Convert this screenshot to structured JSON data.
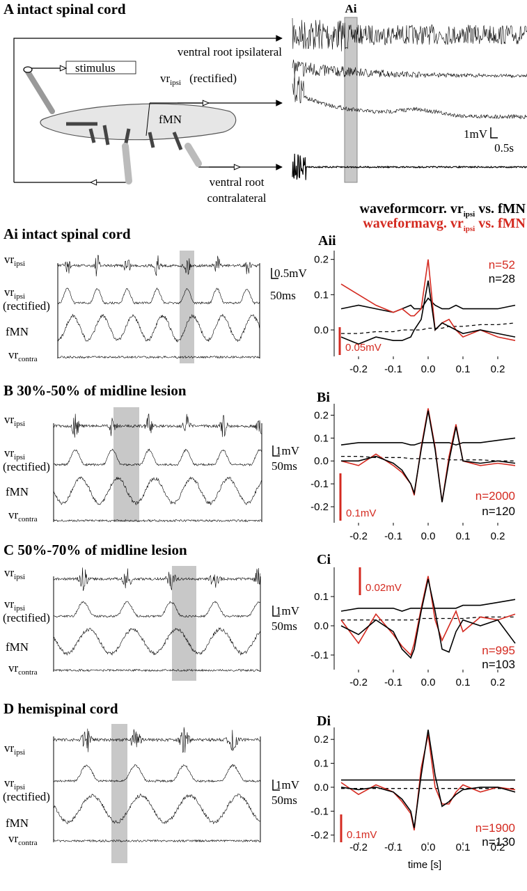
{
  "panel_a": {
    "title": "A intact spinal cord",
    "inset_label": "Ai",
    "stimulus": "stimulus",
    "vr_ipsilateral": "ventral root ipsilateral",
    "fmn": "fMN",
    "scale_v": "1mV",
    "scale_t": "0.5s",
    "vr_contralateral_1": "ventral root",
    "vr_contralateral_2": "contralateral"
  },
  "trace_labels": {
    "vr": "vr",
    "ipsi": "ipsi",
    "rectified": "(rectified)",
    "fmn": "fMN",
    "contra": "contra"
  },
  "legend": [
    {
      "text": "waveformcorr. vr",
      "sub": "ipsi",
      "suffix": " vs. fMN",
      "color": "#000000"
    },
    {
      "text": "waveformavg. vr",
      "sub": "ipsi",
      "suffix": " vs. fMN",
      "color": "#d42a20"
    }
  ],
  "trace_panels": [
    {
      "title": "Ai intact spinal cord",
      "scale_v": "0.5mV",
      "scale_t": "50ms"
    },
    {
      "title": "B   30%-50% of midline lesion",
      "scale_v": "1mV",
      "scale_t": "50ms"
    },
    {
      "title": "C   50%-70% of midline lesion",
      "scale_v": "1mV",
      "scale_t": "50ms"
    },
    {
      "title": "D   hemispinal cord",
      "scale_v": "1mV",
      "scale_t": "50ms"
    }
  ],
  "chart_data": [
    {
      "type": "line",
      "label": "Aii",
      "xlim": [
        -0.27,
        0.25
      ],
      "ylim": [
        -0.075,
        0.225
      ],
      "xticks": [
        -0.2,
        -0.1,
        {
          "value": 0,
          "label": "0.0"
        },
        0.1,
        0.2
      ],
      "yticks": [
        {
          "value": 0,
          "label": "0.0"
        },
        0.1,
        0.2
      ],
      "x": [
        -0.25,
        -0.2,
        -0.15,
        -0.1,
        -0.075,
        -0.05,
        -0.04,
        -0.02,
        0.0,
        0.02,
        0.04,
        0.06,
        0.08,
        0.1,
        0.15,
        0.2,
        0.25
      ],
      "series": [
        {
          "color": "#000000",
          "values": [
            0.06,
            0.07,
            0.06,
            0.05,
            0.06,
            0.07,
            0.06,
            0.06,
            0.09,
            0.07,
            0.06,
            0.06,
            0.07,
            0.06,
            0.06,
            0.06,
            0.07
          ]
        },
        {
          "color": "#000000",
          "dashed": true,
          "values": [
            -0.01,
            -0.01,
            -0.005,
            -0.005,
            0.0,
            0.0,
            0.0,
            0.0,
            0.005,
            0.005,
            0.005,
            0.01,
            0.01,
            0.01,
            0.015,
            0.015,
            0.02
          ]
        },
        {
          "color": "#d42a20",
          "values": [
            0.13,
            0.1,
            0.07,
            0.05,
            0.06,
            0.04,
            0.04,
            0.06,
            0.2,
            0.0,
            0.02,
            0.03,
            0.0,
            -0.02,
            0.0,
            -0.02,
            -0.03
          ]
        },
        {
          "color": "#000000",
          "values": [
            -0.02,
            -0.04,
            -0.02,
            -0.03,
            -0.03,
            -0.02,
            0.0,
            0.03,
            0.14,
            0.0,
            0.02,
            0.01,
            0.0,
            -0.01,
            0.0,
            -0.01,
            -0.02
          ]
        }
      ],
      "scale_label": "0.05mV",
      "n_labels": [
        {
          "text": "n=52",
          "color": "#d42a20"
        },
        {
          "text": "n=28",
          "color": "#000000"
        }
      ]
    },
    {
      "type": "line",
      "label": "Bi",
      "xlim": [
        -0.27,
        0.25
      ],
      "ylim": [
        -0.27,
        0.25
      ],
      "xticks": [
        -0.2,
        -0.1,
        {
          "value": 0,
          "label": "0.0"
        },
        0.1,
        0.2
      ],
      "yticks": [
        -0.2,
        -0.1,
        {
          "value": 0,
          "label": "0.0"
        },
        0.1,
        0.2
      ],
      "x": [
        -0.25,
        -0.2,
        -0.15,
        -0.1,
        -0.075,
        -0.05,
        -0.04,
        -0.02,
        0.0,
        0.02,
        0.04,
        0.06,
        0.08,
        0.1,
        0.15,
        0.2,
        0.25
      ],
      "series": [
        {
          "color": "#000000",
          "values": [
            0.07,
            0.08,
            0.08,
            0.08,
            0.08,
            0.07,
            0.07,
            0.08,
            0.08,
            0.08,
            0.08,
            0.08,
            0.07,
            0.08,
            0.08,
            0.09,
            0.1
          ]
        },
        {
          "color": "#000000",
          "dashed": true,
          "values": [
            0.02,
            0.02,
            0.015,
            0.015,
            0.015,
            0.01,
            0.01,
            0.01,
            0.01,
            0.01,
            0.01,
            0.005,
            0.005,
            0.005,
            0.005,
            0.0,
            0.0
          ]
        },
        {
          "color": "#d42a20",
          "values": [
            0.0,
            -0.02,
            0.03,
            -0.02,
            -0.05,
            -0.1,
            -0.15,
            0.06,
            0.23,
            0.06,
            -0.18,
            0.02,
            0.16,
            0.0,
            -0.02,
            -0.01,
            -0.02
          ]
        },
        {
          "color": "#000000",
          "values": [
            0.0,
            0.0,
            0.02,
            -0.01,
            -0.04,
            -0.1,
            -0.14,
            0.05,
            0.22,
            0.05,
            -0.18,
            0.0,
            0.15,
            0.0,
            -0.01,
            0.0,
            -0.01
          ]
        }
      ],
      "scale_label": "0.1mV",
      "n_labels": [
        {
          "text": "n=2000",
          "color": "#d42a20"
        },
        {
          "text": "n=120",
          "color": "#000000"
        }
      ]
    },
    {
      "type": "line",
      "label": "Ci",
      "xlim": [
        -0.27,
        0.25
      ],
      "ylim": [
        -0.15,
        0.2
      ],
      "xticks": [
        -0.2,
        -0.1,
        {
          "value": 0,
          "label": "0.0"
        },
        0.1,
        0.2
      ],
      "yticks": [
        -0.1,
        {
          "value": 0,
          "label": "0.0"
        },
        0.1
      ],
      "x": [
        -0.25,
        -0.2,
        -0.15,
        -0.1,
        -0.075,
        -0.05,
        -0.04,
        -0.02,
        0.0,
        0.02,
        0.04,
        0.06,
        0.08,
        0.1,
        0.15,
        0.2,
        0.25
      ],
      "series": [
        {
          "color": "#000000",
          "values": [
            0.05,
            0.06,
            0.06,
            0.06,
            0.05,
            0.06,
            0.06,
            0.06,
            0.06,
            0.06,
            0.06,
            0.06,
            0.06,
            0.07,
            0.07,
            0.08,
            0.09
          ]
        },
        {
          "color": "#000000",
          "dashed": true,
          "values": [
            0.02,
            0.02,
            0.02,
            0.02,
            0.02,
            0.02,
            0.02,
            0.025,
            0.025,
            0.025,
            0.025,
            0.025,
            0.025,
            0.025,
            0.03,
            0.03,
            0.03
          ]
        },
        {
          "color": "#d42a20",
          "values": [
            0.02,
            -0.06,
            0.04,
            -0.03,
            -0.07,
            -0.1,
            -0.06,
            0.06,
            0.17,
            0.02,
            -0.05,
            0.0,
            0.05,
            -0.02,
            0.03,
            0.02,
            0.04
          ]
        },
        {
          "color": "#000000",
          "values": [
            0.0,
            -0.03,
            0.02,
            -0.02,
            -0.08,
            -0.11,
            -0.08,
            0.05,
            0.16,
            0.05,
            -0.08,
            -0.09,
            -0.02,
            0.02,
            0.0,
            0.02,
            -0.06
          ]
        }
      ],
      "scale_label": "0.02mV",
      "n_labels": [
        {
          "text": "n=995",
          "color": "#d42a20"
        },
        {
          "text": "n=103",
          "color": "#000000"
        }
      ]
    },
    {
      "type": "line",
      "label": "Di",
      "xlim": [
        -0.27,
        0.25
      ],
      "ylim": [
        -0.23,
        0.25
      ],
      "xticks": [
        -0.2,
        -0.1,
        {
          "value": 0,
          "label": "0.0"
        },
        0.1,
        0.2
      ],
      "yticks": [
        -0.2,
        -0.1,
        {
          "value": 0,
          "label": "0.0"
        },
        0.1,
        0.2
      ],
      "x": [
        -0.25,
        -0.2,
        -0.15,
        -0.1,
        -0.075,
        -0.05,
        -0.04,
        -0.02,
        0.0,
        0.02,
        0.04,
        0.06,
        0.08,
        0.1,
        0.15,
        0.2,
        0.25
      ],
      "series": [
        {
          "color": "#000000",
          "values": [
            0.03,
            0.03,
            0.03,
            0.03,
            0.03,
            0.03,
            0.03,
            0.03,
            0.03,
            0.03,
            0.03,
            0.03,
            0.03,
            0.03,
            0.03,
            0.03,
            0.03
          ]
        },
        {
          "color": "#000000",
          "dashed": true,
          "values": [
            -0.005,
            -0.005,
            -0.005,
            -0.005,
            -0.005,
            -0.005,
            -0.005,
            -0.005,
            -0.005,
            -0.005,
            -0.005,
            -0.005,
            -0.005,
            -0.005,
            -0.005,
            -0.005,
            -0.005
          ]
        },
        {
          "color": "#d42a20",
          "values": [
            0.02,
            -0.03,
            0.01,
            -0.02,
            -0.06,
            -0.11,
            -0.18,
            0.08,
            0.22,
            0.0,
            -0.07,
            -0.07,
            -0.02,
            0.01,
            -0.02,
            0.0,
            -0.01
          ]
        },
        {
          "color": "#000000",
          "values": [
            0.0,
            -0.01,
            0.0,
            -0.02,
            -0.05,
            -0.1,
            -0.17,
            0.05,
            0.24,
            0.05,
            -0.08,
            -0.06,
            -0.03,
            -0.01,
            0.0,
            0.0,
            -0.02
          ]
        }
      ],
      "scale_label": "0.1mV",
      "n_labels": [
        {
          "text": "n=1900",
          "color": "#d42a20"
        },
        {
          "text": "n=130",
          "color": "#000000"
        }
      ],
      "xlabel": "time [s]"
    }
  ]
}
